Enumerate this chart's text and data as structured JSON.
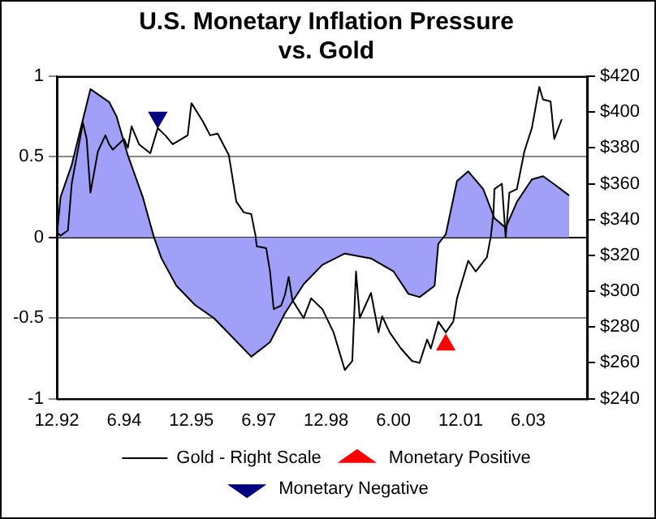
{
  "chart_data": {
    "type": "area",
    "title": "U.S. Monetary Inflation Pressure\nvs. Gold",
    "xlim": [
      "1992-12",
      "2004-09-24"
    ],
    "xticks": [
      {
        "value": "1992-12",
        "label": "12.92"
      },
      {
        "value": "1994-06",
        "label": "6.94"
      },
      {
        "value": "1995-12",
        "label": "12.95"
      },
      {
        "value": "1997-06",
        "label": "6.97"
      },
      {
        "value": "1998-12",
        "label": "12.98"
      },
      {
        "value": "2000-06",
        "label": "6.00"
      },
      {
        "value": "2001-12",
        "label": "12.01"
      },
      {
        "value": "2003-06",
        "label": "6.03"
      }
    ],
    "ylim": [
      -1,
      1
    ],
    "yticks": [
      -1,
      -0.5,
      0,
      0.5,
      1
    ],
    "y2lim": [
      240,
      420
    ],
    "y2ticks": [
      {
        "value": 240,
        "label": "$240"
      },
      {
        "value": 260,
        "label": "$260"
      },
      {
        "value": 280,
        "label": "$280"
      },
      {
        "value": 300,
        "label": "$300"
      },
      {
        "value": 320,
        "label": "$320"
      },
      {
        "value": 340,
        "label": "$340"
      },
      {
        "value": 360,
        "label": "$360"
      },
      {
        "value": 380,
        "label": "$380"
      },
      {
        "value": 400,
        "label": "$400"
      },
      {
        "value": 420,
        "label": "$420"
      }
    ],
    "grid": "y",
    "legend": "bottom",
    "series": [
      {
        "color": "#a0a0f8",
        "x": [
          "1992-12",
          "1993-01",
          "1993-04",
          "1993-09",
          "1994-02",
          "1994-04",
          "1994-07",
          "1994-11",
          "1995-02",
          "1995-04",
          "1995-08",
          "1996-01",
          "1996-06",
          "1996-11",
          "1997-04",
          "1997-09",
          "1998-01",
          "1998-06",
          "1998-11",
          "1999-05",
          "1999-12",
          "2000-06",
          "2000-10",
          "2001-01",
          "2001-05",
          "2001-06",
          "2001-08",
          "2001-11",
          "2002-02",
          "2002-06",
          "2002-09",
          "2002-12",
          "2003-03",
          "2003-07",
          "2003-10",
          "2004-01",
          "2004-05"
        ],
        "values": [
          0,
          0.25,
          0.45,
          0.92,
          0.84,
          0.75,
          0.51,
          0.25,
          0,
          -0.13,
          -0.3,
          -0.42,
          -0.5,
          -0.62,
          -0.74,
          -0.65,
          -0.47,
          -0.29,
          -0.17,
          -0.1,
          -0.13,
          -0.21,
          -0.35,
          -0.37,
          -0.3,
          -0.04,
          0.02,
          0.35,
          0.41,
          0.3,
          0.12,
          0.06,
          0.22,
          0.36,
          0.38,
          0.33,
          0.26
        ]
      },
      {
        "type": "line",
        "name": "Gold - Right Scale",
        "color": "#000000",
        "axis": "y2",
        "marker": "none",
        "x": [
          "1992-12",
          "1993-01",
          "1993-03",
          "1993-04",
          "1993-07",
          "1993-08",
          "1993-09",
          "1993-11",
          "1994-01",
          "1994-02",
          "1994-03",
          "1994-06",
          "1994-07",
          "1994-08",
          "1994-10",
          "1995-01",
          "1995-03",
          "1995-05",
          "1995-07",
          "1995-11",
          "1995-12",
          "1996-03",
          "1996-05",
          "1996-07",
          "1996-10",
          "1996-12",
          "1997-02",
          "1997-04",
          "1997-05-05",
          "1997-05-15",
          "1997-08",
          "1997-09",
          "1997-10",
          "1997-12",
          "1998-01",
          "1998-02",
          "1998-03",
          "1998-06",
          "1998-08",
          "1998-11",
          "1999-02",
          "1999-05",
          "1999-07",
          "1999-08",
          "1999-09",
          "1999-12",
          "2000-02",
          "2000-03",
          "2000-05",
          "2000-08",
          "2000-11",
          "2001-01",
          "2001-03",
          "2001-04",
          "2001-06",
          "2001-08",
          "2001-10",
          "2001-11",
          "2002-02",
          "2002-04",
          "2002-07",
          "2002-08-03",
          "2002-08-24",
          "2002-09",
          "2002-11",
          "2002-12",
          "2003-01",
          "2003-03",
          "2003-05",
          "2003-07",
          "2003-09",
          "2003-10",
          "2003-12",
          "2004-01",
          "2004-03"
        ],
        "values": [
          333,
          331,
          334,
          360,
          394,
          385,
          355,
          378,
          387,
          382,
          379,
          385,
          380,
          392,
          382,
          377,
          391,
          387,
          382,
          387,
          405,
          395,
          387,
          388,
          376,
          350,
          344,
          343,
          331,
          325,
          324,
          311,
          290,
          292,
          298,
          308,
          295,
          285,
          296,
          290,
          277,
          256,
          261,
          311,
          285,
          299,
          277,
          286,
          277,
          268,
          261,
          260,
          273,
          268,
          283,
          277,
          283,
          296,
          317,
          311,
          319,
          331,
          344,
          357,
          360,
          330,
          355,
          357,
          378,
          391,
          414,
          407,
          406,
          385,
          396
        ]
      },
      {
        "type": "scatter",
        "name": "Monetary Positive",
        "color": "#ff0000",
        "axis": "y2",
        "marker": "triangle",
        "x": [
          "2001-08"
        ],
        "values": [
          270
        ]
      },
      {
        "type": "scatter",
        "name": "Monetary Negative",
        "color": "#000080",
        "axis": "y2",
        "marker": "triangle_down",
        "x": [
          "1995-03"
        ],
        "values": [
          397
        ]
      }
    ]
  }
}
